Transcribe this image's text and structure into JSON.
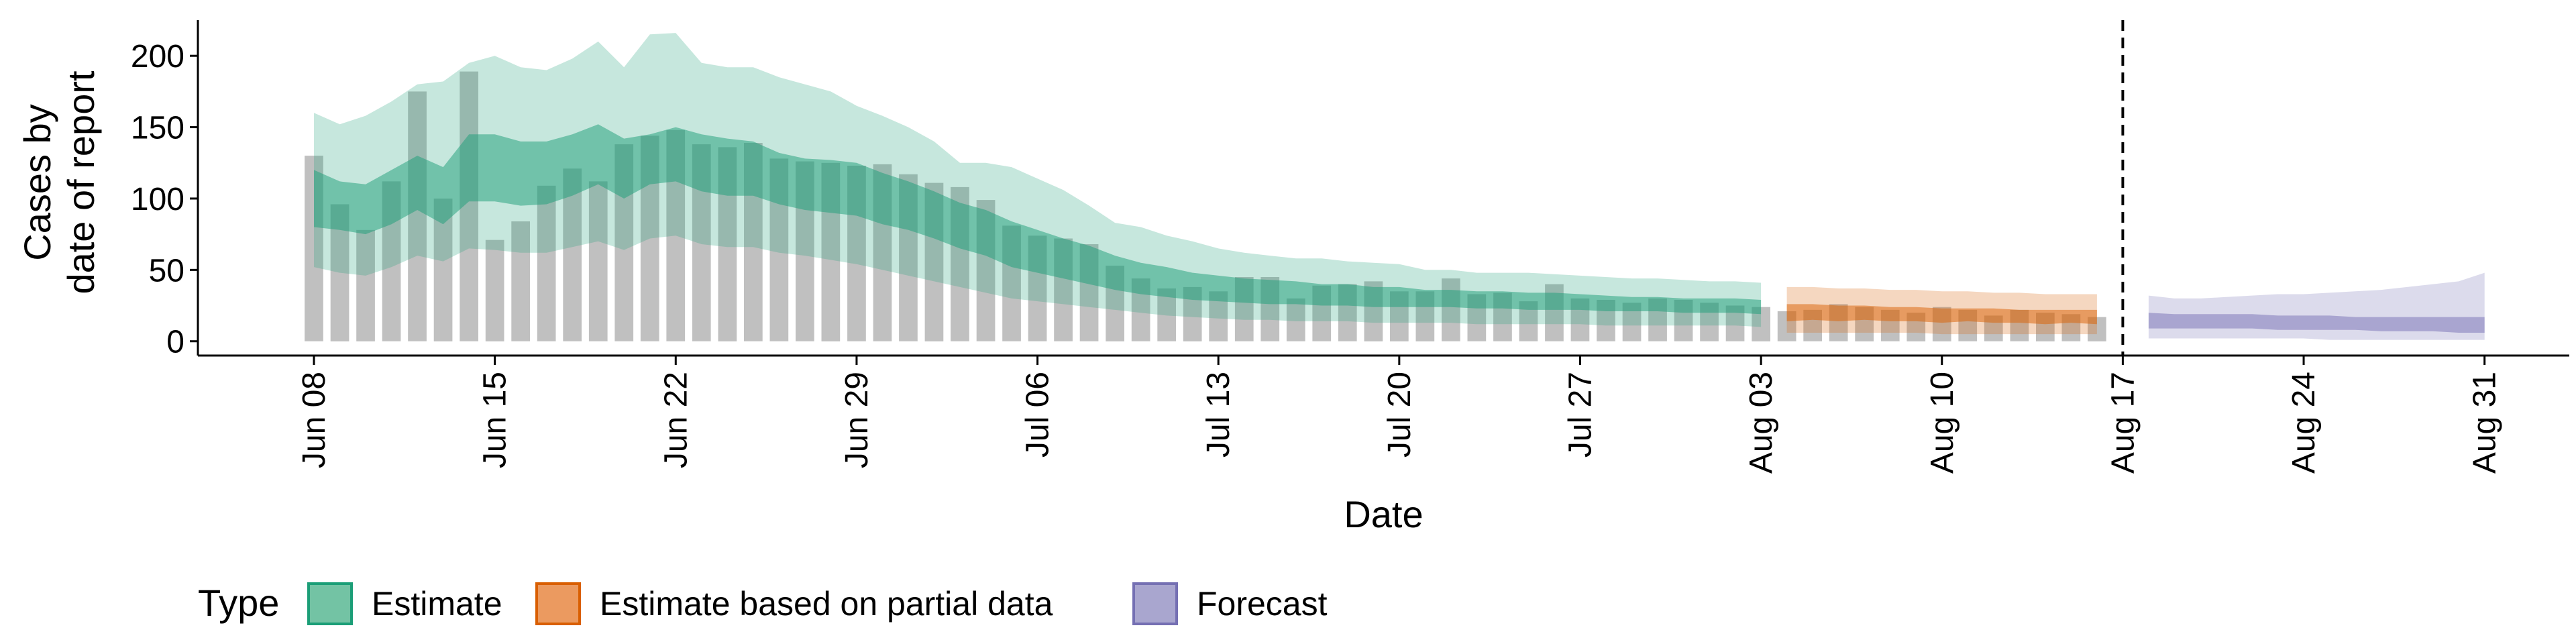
{
  "chart_data": {
    "type": "area",
    "title": "",
    "xlabel": "Date",
    "ylabel_lines": [
      "Cases by",
      "date of report"
    ],
    "ylim": [
      -10,
      225
    ],
    "y_ticks": [
      0,
      50,
      100,
      150,
      200
    ],
    "x_ticks": [
      "Jun 08",
      "Jun 15",
      "Jun 22",
      "Jun 29",
      "Jul 06",
      "Jul 13",
      "Jul 20",
      "Jul 27",
      "Aug 03",
      "Aug 10",
      "Aug 17",
      "Aug 24",
      "Aug 31"
    ],
    "x_tick_day_index": [
      0,
      7,
      14,
      21,
      28,
      35,
      42,
      49,
      56,
      63,
      70,
      77,
      84
    ],
    "vline_at": "Aug 17",
    "legend": {
      "title": "Type",
      "position": "bottom",
      "items": [
        {
          "label": "Estimate",
          "fill": "#73c3a4",
          "stroke": "#1b9e77"
        },
        {
          "label": "Estimate based on partial data",
          "fill": "#eb9a60",
          "stroke": "#d95f02"
        },
        {
          "label": "Forecast",
          "fill": "#a9a6cf",
          "stroke": "#7570b3"
        }
      ]
    },
    "colors": {
      "estimate": "#1b9e77",
      "partial": "#d95f02",
      "forecast": "#7570b3",
      "bars": "#bdbdbd"
    },
    "reported_cases": {
      "start": "Jun 08",
      "values": [
        130,
        96,
        78,
        112,
        175,
        100,
        189,
        71,
        84,
        109,
        121,
        112,
        138,
        144,
        148,
        138,
        136,
        139,
        128,
        126,
        125,
        123,
        124,
        117,
        111,
        108,
        99,
        81,
        74,
        72,
        68,
        53,
        44,
        37,
        38,
        35,
        45,
        45,
        30,
        39,
        40,
        42,
        35,
        35,
        44,
        33,
        34,
        28,
        40,
        30,
        29,
        27,
        30,
        29,
        27,
        25,
        24,
        21,
        22,
        26,
        24,
        22,
        20,
        24,
        22,
        18,
        22,
        20,
        19,
        17
      ]
    },
    "series": [
      {
        "name": "Estimate",
        "start": "Jun 08",
        "outer_upper": [
          160,
          152,
          158,
          168,
          180,
          182,
          195,
          200,
          192,
          190,
          198,
          210,
          192,
          215,
          216,
          195,
          192,
          192,
          185,
          180,
          175,
          165,
          158,
          150,
          140,
          125,
          125,
          122,
          114,
          106,
          95,
          83,
          80,
          74,
          70,
          65,
          62,
          60,
          58,
          58,
          56,
          55,
          54,
          50,
          50,
          48,
          48,
          48,
          47,
          46,
          45,
          44,
          44,
          43,
          42,
          42,
          41
        ],
        "inner_upper": [
          120,
          112,
          110,
          120,
          130,
          122,
          145,
          145,
          140,
          140,
          145,
          152,
          142,
          145,
          150,
          145,
          142,
          140,
          132,
          128,
          127,
          125,
          118,
          112,
          105,
          97,
          92,
          84,
          78,
          72,
          67,
          60,
          55,
          52,
          48,
          46,
          44,
          43,
          42,
          40,
          40,
          38,
          38,
          36,
          36,
          35,
          35,
          34,
          34,
          33,
          32,
          31,
          31,
          30,
          30,
          30,
          29
        ],
        "inner_lower": [
          80,
          78,
          75,
          82,
          92,
          82,
          98,
          98,
          95,
          96,
          102,
          110,
          100,
          110,
          112,
          105,
          102,
          102,
          96,
          92,
          90,
          88,
          82,
          78,
          72,
          65,
          60,
          52,
          48,
          44,
          40,
          36,
          33,
          31,
          29,
          28,
          27,
          26,
          26,
          25,
          25,
          24,
          24,
          24,
          24,
          23,
          23,
          22,
          22,
          22,
          21,
          21,
          21,
          20,
          20,
          20,
          19
        ],
        "outer_lower": [
          52,
          48,
          46,
          52,
          60,
          56,
          65,
          64,
          62,
          62,
          66,
          70,
          64,
          72,
          74,
          68,
          66,
          66,
          62,
          60,
          57,
          54,
          50,
          46,
          42,
          38,
          34,
          30,
          28,
          26,
          24,
          22,
          20,
          18,
          17,
          16,
          15,
          15,
          14,
          14,
          14,
          13,
          13,
          13,
          13,
          12,
          12,
          12,
          12,
          12,
          11,
          11,
          11,
          11,
          11,
          11,
          10
        ]
      },
      {
        "name": "Estimate based on partial data",
        "start": "Aug 04",
        "outer_upper": [
          38,
          38,
          37,
          37,
          36,
          36,
          35,
          35,
          34,
          34,
          33,
          33,
          33
        ],
        "inner_upper": [
          26,
          26,
          25,
          25,
          24,
          24,
          23,
          23,
          23,
          22,
          22,
          22,
          22
        ],
        "inner_lower": [
          14,
          15,
          14,
          15,
          14,
          14,
          13,
          14,
          13,
          13,
          12,
          13,
          12
        ],
        "outer_lower": [
          6,
          6,
          6,
          6,
          6,
          6,
          5,
          5,
          5,
          5,
          5,
          5,
          5
        ]
      },
      {
        "name": "Forecast",
        "start": "Aug 18",
        "outer_upper": [
          32,
          30,
          30,
          31,
          32,
          33,
          33,
          34,
          35,
          36,
          38,
          40,
          42,
          48
        ],
        "inner_upper": [
          20,
          19,
          19,
          19,
          19,
          18,
          18,
          18,
          17,
          17,
          17,
          17,
          17,
          17
        ],
        "inner_lower": [
          9,
          9,
          9,
          9,
          9,
          8,
          8,
          8,
          8,
          7,
          7,
          7,
          6,
          6
        ],
        "outer_lower": [
          2,
          2,
          2,
          2,
          2,
          2,
          2,
          1,
          1,
          1,
          1,
          1,
          1,
          1
        ]
      }
    ]
  }
}
